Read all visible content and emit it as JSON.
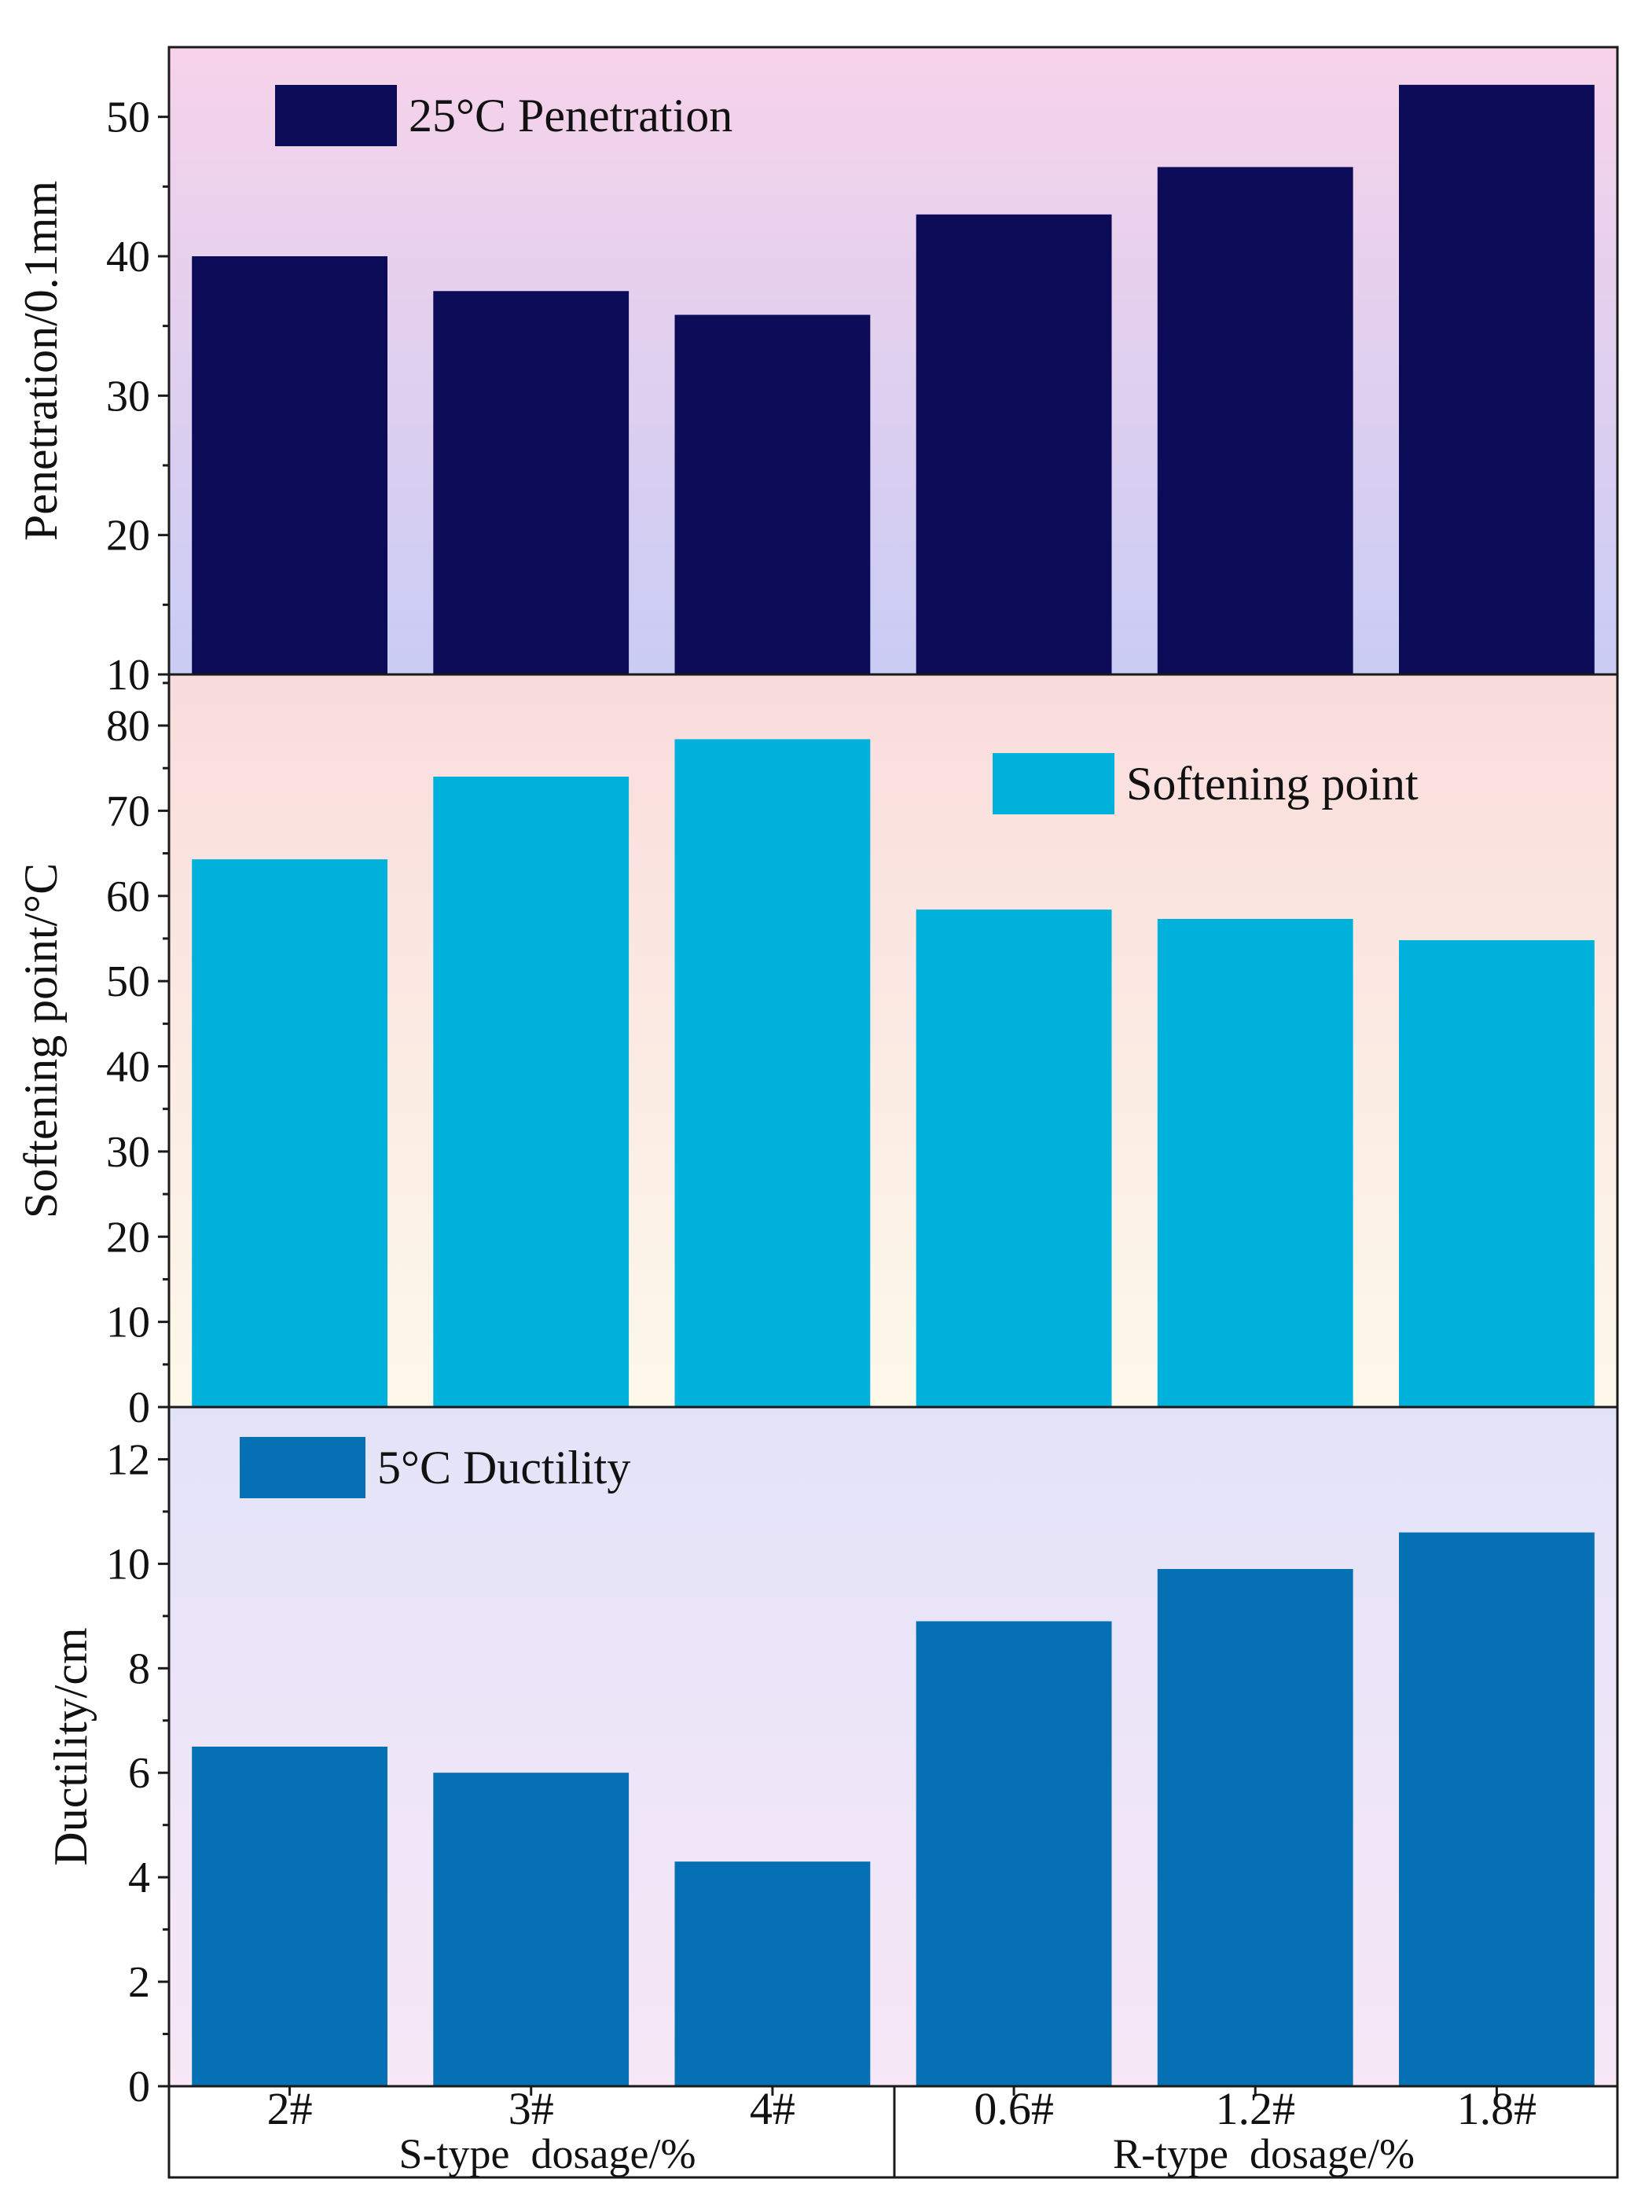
{
  "chart_data": [
    {
      "type": "bar",
      "id": "penetration",
      "categories": [
        "2#",
        "3#",
        "4#",
        "0.6#",
        "1.2#",
        "1.8#"
      ],
      "values": [
        40.0,
        37.5,
        35.8,
        43.0,
        46.4,
        52.3
      ],
      "ylabel": "Penetration/0.1mm",
      "ylim": [
        10,
        55
      ],
      "yticks": [
        10,
        20,
        30,
        40,
        50
      ],
      "legend": "25°C Penetration",
      "legend_position": "top-left",
      "color": "#0b0b57",
      "bg_top": "#f7d3ea",
      "bg_bottom": "#c9ccf4"
    },
    {
      "type": "bar",
      "id": "softening",
      "categories": [
        "2#",
        "3#",
        "4#",
        "0.6#",
        "1.2#",
        "1.8#"
      ],
      "values": [
        64.3,
        74.0,
        78.4,
        58.4,
        57.3,
        54.8
      ],
      "ylabel": "Softening point/°C",
      "ylim": [
        0,
        86
      ],
      "yticks": [
        0,
        10,
        20,
        30,
        40,
        50,
        60,
        70,
        80
      ],
      "legend": "Softening point",
      "legend_position": "top-right",
      "color": "#00b2db",
      "bg_top": "#f9dcdc",
      "bg_bottom": "#fdf9ea"
    },
    {
      "type": "bar",
      "id": "ductility",
      "categories": [
        "2#",
        "3#",
        "4#",
        "0.6#",
        "1.2#",
        "1.8#"
      ],
      "values": [
        6.5,
        6.0,
        4.3,
        8.9,
        9.9,
        10.6
      ],
      "ylabel": "Ductility/cm",
      "ylim": [
        0,
        13
      ],
      "yticks": [
        0,
        2,
        4,
        6,
        8,
        10,
        12
      ],
      "legend": "5°C Ductility",
      "legend_position": "top-left",
      "color": "#0570b4",
      "bg_top": "#e3e3f8",
      "bg_bottom": "#f7e7f7"
    }
  ],
  "x_groups": [
    {
      "label": "S-type  dosage/%",
      "categories": [
        "2#",
        "3#",
        "4#"
      ]
    },
    {
      "label": "R-type  dosage/%",
      "categories": [
        "0.6#",
        "1.2#",
        "1.8#"
      ]
    }
  ]
}
